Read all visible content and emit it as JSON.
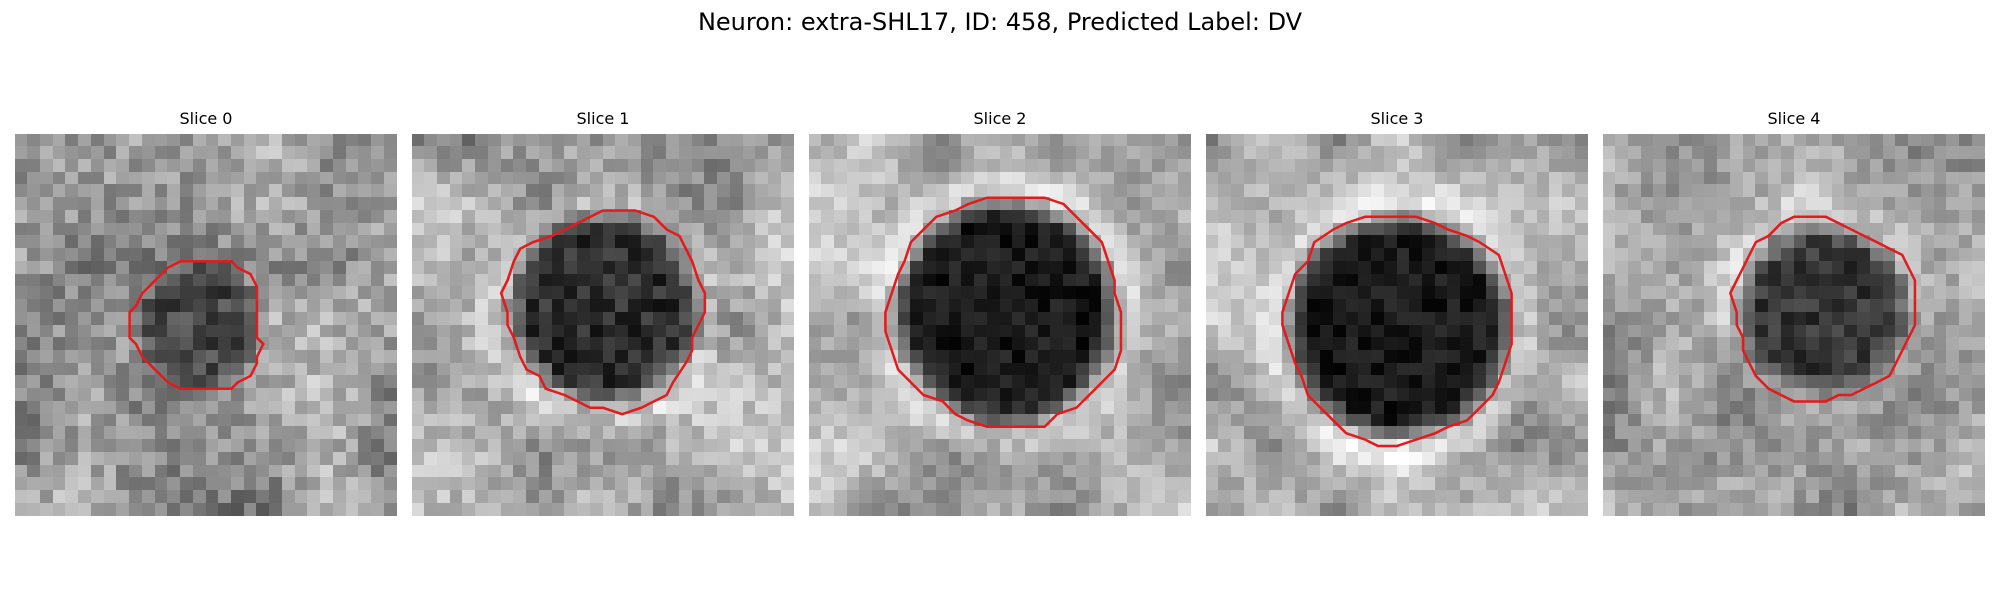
{
  "figure": {
    "title": "Neuron: extra-SHL17, ID: 458, Predicted Label: DV"
  },
  "panels": [
    {
      "title": "Slice 0"
    },
    {
      "title": "Slice 1"
    },
    {
      "title": "Slice 2"
    },
    {
      "title": "Slice 3"
    },
    {
      "title": "Slice 4"
    }
  ],
  "colors": {
    "contour": "#e41a1c",
    "background": "#ffffff",
    "colormap": "grayscale"
  }
}
